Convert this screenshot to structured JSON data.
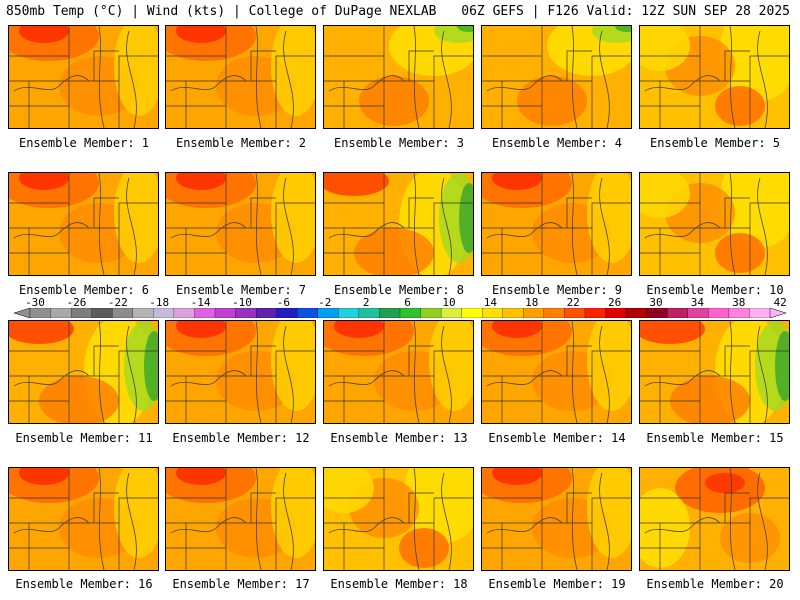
{
  "header": {
    "left": "850mb Temp (°C) | Wind (kts) | College of DuPage NEXLAB",
    "right": "06Z GEFS | F126 Valid: 12Z SUN SEP 28 2025"
  },
  "panels": [
    {
      "label": "Ensemble Member: 1",
      "style": "hot-north"
    },
    {
      "label": "Ensemble Member: 2",
      "style": "hot-north"
    },
    {
      "label": "Ensemble Member: 3",
      "style": "green-ne"
    },
    {
      "label": "Ensemble Member: 4",
      "style": "green-ne"
    },
    {
      "label": "Ensemble Member: 5",
      "style": "mild"
    },
    {
      "label": "Ensemble Member: 6",
      "style": "hot-north"
    },
    {
      "label": "Ensemble Member: 7",
      "style": "hot-north"
    },
    {
      "label": "Ensemble Member: 8",
      "style": "green-east"
    },
    {
      "label": "Ensemble Member: 9",
      "style": "hot-north"
    },
    {
      "label": "Ensemble Member: 10",
      "style": "mild"
    },
    {
      "label": "Ensemble Member: 11",
      "style": "green-east"
    },
    {
      "label": "Ensemble Member: 12",
      "style": "hot-north"
    },
    {
      "label": "Ensemble Member: 13",
      "style": "hot-north"
    },
    {
      "label": "Ensemble Member: 14",
      "style": "hot-north"
    },
    {
      "label": "Ensemble Member: 15",
      "style": "green-east"
    },
    {
      "label": "Ensemble Member: 16",
      "style": "hot-north"
    },
    {
      "label": "Ensemble Member: 17",
      "style": "hot-north"
    },
    {
      "label": "Ensemble Member: 18",
      "style": "mild"
    },
    {
      "label": "Ensemble Member: 19",
      "style": "hot-north"
    },
    {
      "label": "Ensemble Member: 20",
      "style": "hot-ne"
    }
  ],
  "colorbar": {
    "ticks": [
      "-30",
      "-26",
      "-22",
      "-18",
      "-14",
      "-10",
      "-6",
      "-2",
      "2",
      "6",
      "10",
      "14",
      "18",
      "22",
      "26",
      "30",
      "34",
      "38",
      "42"
    ],
    "colors": [
      "#909090",
      "#a8a8a8",
      "#7d7d7d",
      "#5c5c5c",
      "#8c8c8c",
      "#b4b4b4",
      "#c7b9dc",
      "#dda0dd",
      "#e060e0",
      "#c040d0",
      "#9a30c0",
      "#6020b0",
      "#2020c0",
      "#1050e0",
      "#00a0f0",
      "#20d0e0",
      "#20c0a0",
      "#20a050",
      "#30c030",
      "#90d020",
      "#d8f040",
      "#ffff00",
      "#ffe000",
      "#ffc000",
      "#ffa000",
      "#ff8000",
      "#ff5000",
      "#ff2000",
      "#e00000",
      "#b00000",
      "#900020",
      "#c02060",
      "#e040a0",
      "#ff60d0",
      "#ff80e0",
      "#ffb0f0"
    ]
  }
}
